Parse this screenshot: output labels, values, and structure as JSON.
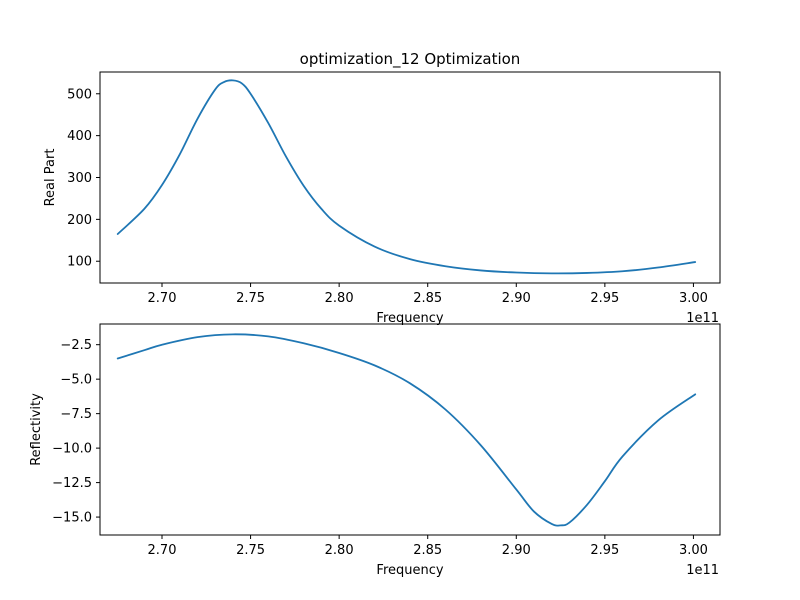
{
  "colors": {
    "series": "#1f77b4"
  },
  "chart_data": [
    {
      "type": "line",
      "title": "optimization_12 Optimization",
      "xlabel": "Frequency",
      "ylabel": "Real Part",
      "x_offset_label": "1e11",
      "xlim": [
        2.665,
        3.015
      ],
      "ylim": [
        48,
        552
      ],
      "xticks": [
        2.7,
        2.75,
        2.8,
        2.85,
        2.9,
        2.95,
        3.0
      ],
      "xtick_labels": [
        "2.70",
        "2.75",
        "2.80",
        "2.85",
        "2.90",
        "2.95",
        "3.00"
      ],
      "yticks": [
        100,
        200,
        300,
        400,
        500
      ],
      "ytick_labels": [
        "100",
        "200",
        "300",
        "400",
        "500"
      ],
      "grid": false,
      "series": [
        {
          "x": [
            2.675,
            2.69,
            2.7,
            2.71,
            2.72,
            2.73,
            2.735,
            2.74,
            2.745,
            2.75,
            2.76,
            2.77,
            2.78,
            2.79,
            2.8,
            2.82,
            2.84,
            2.86,
            2.88,
            2.9,
            2.92,
            2.94,
            2.96,
            2.98,
            3.001
          ],
          "y": [
            165,
            225,
            282,
            355,
            440,
            510,
            528,
            532,
            525,
            500,
            430,
            350,
            280,
            225,
            185,
            135,
            105,
            88,
            78,
            73,
            71,
            72,
            76,
            85,
            98
          ]
        }
      ]
    },
    {
      "type": "line",
      "xlabel": "Frequency",
      "ylabel": "Reflectivity",
      "x_offset_label": "1e11",
      "xlim": [
        2.665,
        3.015
      ],
      "ylim": [
        -16.3,
        -1.0
      ],
      "xticks": [
        2.7,
        2.75,
        2.8,
        2.85,
        2.9,
        2.95,
        3.0
      ],
      "xtick_labels": [
        "2.70",
        "2.75",
        "2.80",
        "2.85",
        "2.90",
        "2.95",
        "3.00"
      ],
      "yticks": [
        -2.5,
        -5.0,
        -7.5,
        -10.0,
        -12.5,
        -15.0
      ],
      "ytick_labels": [
        "−2.5",
        "−5.0",
        "−7.5",
        "−10.0",
        "−12.5",
        "−15.0"
      ],
      "grid": false,
      "series": [
        {
          "x": [
            2.675,
            2.69,
            2.7,
            2.72,
            2.74,
            2.76,
            2.78,
            2.8,
            2.82,
            2.84,
            2.86,
            2.88,
            2.9,
            2.91,
            2.92,
            2.925,
            2.93,
            2.94,
            2.95,
            2.96,
            2.98,
            3.001
          ],
          "y": [
            -3.5,
            -2.9,
            -2.5,
            -1.95,
            -1.75,
            -1.9,
            -2.4,
            -3.1,
            -4.0,
            -5.3,
            -7.2,
            -9.8,
            -13.0,
            -14.6,
            -15.5,
            -15.6,
            -15.4,
            -14.1,
            -12.4,
            -10.6,
            -8.0,
            -6.1
          ]
        }
      ]
    }
  ]
}
